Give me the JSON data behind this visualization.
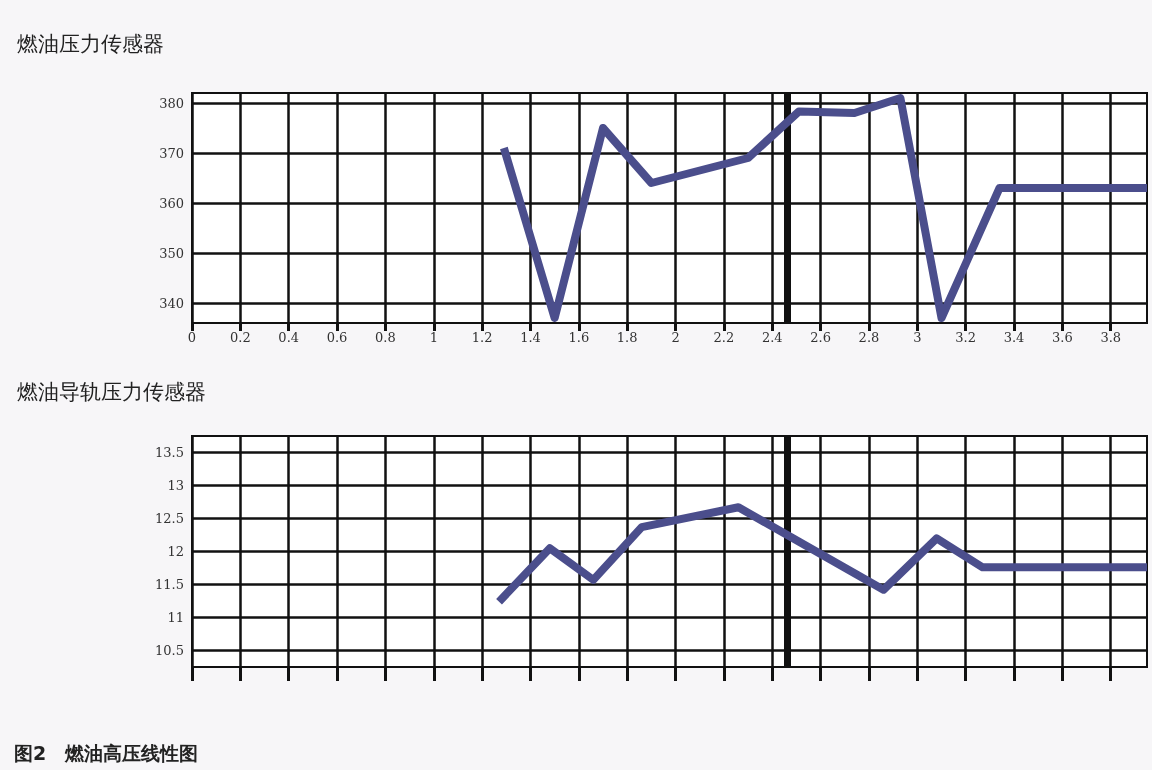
{
  "chart_data": [
    {
      "type": "line",
      "title": "燃油压力传感器",
      "x": [
        1.29,
        1.5,
        1.7,
        1.9,
        2.3,
        2.51,
        2.74,
        2.93,
        3.1,
        3.34,
        3.95
      ],
      "series": [
        {
          "color": "#4b4e8c",
          "values": [
            371,
            337,
            375,
            364,
            369,
            378.3,
            378,
            381,
            337,
            363,
            363
          ]
        }
      ],
      "xlim": [
        0,
        3.95
      ],
      "xticks": [
        0,
        0.2,
        0.4,
        0.6,
        0.8,
        1,
        1.2,
        1.4,
        1.6,
        1.8,
        2,
        2.2,
        2.4,
        2.6,
        2.8,
        3,
        3.2,
        3.4,
        3.6,
        3.8
      ],
      "ylim": [
        336,
        382
      ],
      "yticks": [
        340,
        350,
        360,
        370,
        380
      ],
      "ref_lines": [
        {
          "axis": "x",
          "value": 2.46,
          "color": "#111111"
        }
      ],
      "grid": true,
      "marker": "none",
      "line_style": "solid"
    },
    {
      "type": "line",
      "title": "燃油导轨压力传感器",
      "x": [
        1.27,
        1.48,
        1.66,
        1.86,
        2.26,
        2.86,
        3.08,
        3.27,
        3.95
      ],
      "series": [
        {
          "color": "#4b4e8c",
          "values": [
            11.24,
            12.05,
            11.57,
            12.37,
            12.67,
            11.42,
            12.2,
            11.76,
            11.76
          ]
        }
      ],
      "xlim": [
        0,
        3.95
      ],
      "xticks": [
        0,
        0.2,
        0.4,
        0.6,
        0.8,
        1,
        1.2,
        1.4,
        1.6,
        1.8,
        2,
        2.2,
        2.4,
        2.6,
        2.8,
        3,
        3.2,
        3.4,
        3.6,
        3.8
      ],
      "ylim": [
        10.25,
        13.75
      ],
      "yticks": [
        10.5,
        11,
        11.5,
        12,
        12.5,
        13,
        13.5
      ],
      "ref_lines": [
        {
          "axis": "x",
          "value": 2.46,
          "color": "#111111"
        }
      ],
      "tick_labels": "y",
      "annotations": [
        "图2　燃油高压线性图"
      ],
      "grid": true,
      "marker": "none",
      "line_style": "solid"
    }
  ]
}
